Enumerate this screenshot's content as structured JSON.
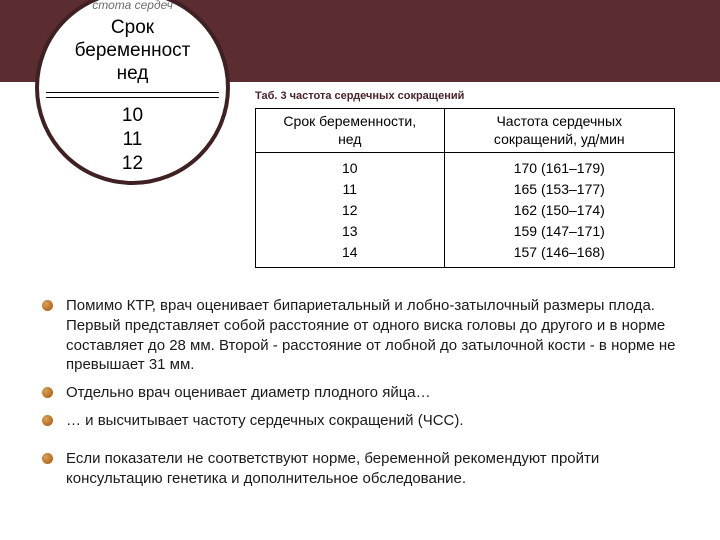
{
  "colors": {
    "band": "#5b2d31",
    "magnifier_border": "#3f2023",
    "bullet_light": "#d6a25a",
    "bullet_dark": "#b56a1f",
    "text": "#1a1a1a",
    "background": "#ffffff"
  },
  "magnifier": {
    "hint": "стота сердеч",
    "header_line1": "Срок беременност",
    "header_line2": "нед",
    "nums": [
      "10",
      "11",
      "12"
    ]
  },
  "table": {
    "caption": "Таб. 3   частота сердечных сокращений",
    "columns": [
      {
        "line1": "Срок беременности,",
        "line2": "нед",
        "width": "45%"
      },
      {
        "line1": "Частота сердечных",
        "line2": "сокращений, уд/мин",
        "width": "55%"
      }
    ],
    "rows": [
      {
        "week": "10",
        "hr": "170 (161–179)"
      },
      {
        "week": "11",
        "hr": "165 (153–177)"
      },
      {
        "week": "12",
        "hr": "162 (150–174)"
      },
      {
        "week": "13",
        "hr": "159 (147–171)"
      },
      {
        "week": "14",
        "hr": "157 (146–168)"
      }
    ]
  },
  "bullets": [
    "Помимо КТР, врач оценивает бипариетальный и лобно-затылочный размеры плода. Первый представляет собой расстояние от одного виска головы до другого и в норме составляет до 28 мм. Второй - расстояние от лобной до затылочной кости - в норме не превышает 31 мм.",
    "Отдельно врач оценивает диаметр плодного яйца…",
    "… и высчитывает частоту сердечных сокращений (ЧСС).",
    "Если показатели не соответствуют норме, беременной рекомендуют пройти консультацию генетика и дополнительное обследование."
  ]
}
